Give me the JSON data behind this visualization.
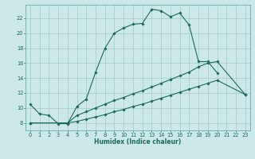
{
  "xlabel": "Humidex (Indice chaleur)",
  "bg_color": "#cce8e8",
  "grid_color": "#b0d4d4",
  "line_color": "#1a6b5a",
  "xlim": [
    -0.5,
    23.5
  ],
  "ylim": [
    7.0,
    23.8
  ],
  "xticks": [
    0,
    1,
    2,
    3,
    4,
    5,
    6,
    7,
    8,
    9,
    10,
    11,
    12,
    13,
    14,
    15,
    16,
    17,
    18,
    19,
    20,
    21,
    22,
    23
  ],
  "yticks": [
    8,
    10,
    12,
    14,
    16,
    18,
    20,
    22
  ],
  "line1_x": [
    0,
    1,
    2,
    3,
    4,
    5,
    6,
    7,
    8,
    9,
    10,
    11,
    12,
    13,
    14,
    15,
    16,
    17,
    18,
    19,
    20
  ],
  "line1_y": [
    10.5,
    9.2,
    9.0,
    7.9,
    7.9,
    10.2,
    11.2,
    14.8,
    18.0,
    20.0,
    20.7,
    21.2,
    21.3,
    23.2,
    23.0,
    22.2,
    22.7,
    21.1,
    16.2,
    16.2,
    14.7
  ],
  "line2_x": [
    0,
    4,
    5,
    6,
    7,
    8,
    9,
    10,
    11,
    12,
    13,
    14,
    15,
    16,
    17,
    18,
    19,
    20,
    23
  ],
  "line2_y": [
    8.0,
    8.0,
    9.0,
    9.5,
    10.0,
    10.5,
    11.0,
    11.4,
    11.9,
    12.3,
    12.8,
    13.3,
    13.8,
    14.3,
    14.8,
    15.5,
    16.0,
    16.2,
    11.8
  ],
  "line3_x": [
    0,
    4,
    5,
    6,
    7,
    8,
    9,
    10,
    11,
    12,
    13,
    14,
    15,
    16,
    17,
    18,
    19,
    20,
    23
  ],
  "line3_y": [
    8.0,
    8.0,
    8.2,
    8.5,
    8.8,
    9.1,
    9.5,
    9.8,
    10.2,
    10.5,
    10.9,
    11.3,
    11.7,
    12.1,
    12.5,
    12.9,
    13.3,
    13.7,
    11.8
  ]
}
